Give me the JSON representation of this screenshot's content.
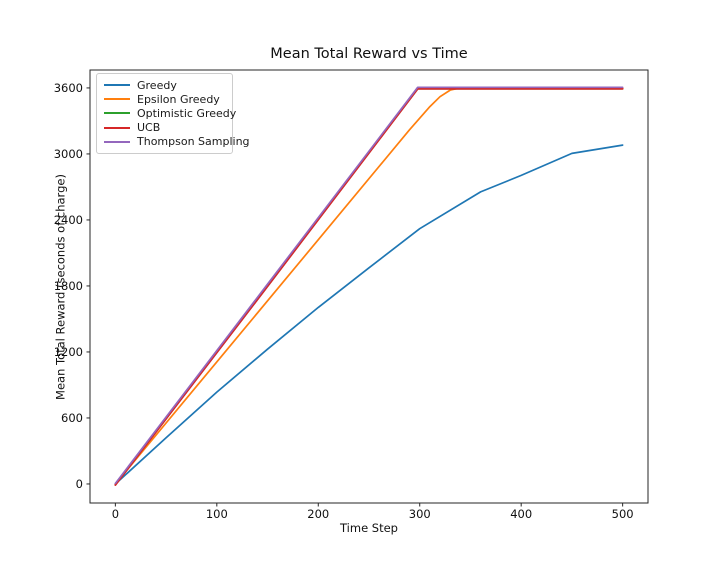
{
  "chart_data": {
    "type": "line",
    "title": "Mean Total Reward vs Time",
    "xlabel": "Time Step",
    "ylabel": "Mean Total Reward (seconds of charge)",
    "x_ticks": [
      0,
      100,
      200,
      300,
      400,
      500
    ],
    "y_ticks": [
      0,
      600,
      1200,
      1800,
      2400,
      3000,
      3600
    ],
    "xlim": [
      -25,
      525
    ],
    "ylim": [
      -173,
      3763
    ],
    "grid": false,
    "legend_position": "upper left",
    "series": [
      {
        "name": "Greedy",
        "color": "#1f77b4",
        "points": [
          [
            0,
            0
          ],
          [
            50,
            420
          ],
          [
            100,
            835
          ],
          [
            150,
            1225
          ],
          [
            200,
            1605
          ],
          [
            250,
            1965
          ],
          [
            300,
            2320
          ],
          [
            360,
            2655
          ],
          [
            400,
            2805
          ],
          [
            450,
            3005
          ],
          [
            500,
            3080
          ]
        ]
      },
      {
        "name": "Epsilon Greedy",
        "color": "#ff7f0e",
        "points": [
          [
            0,
            0
          ],
          [
            100,
            1110
          ],
          [
            200,
            2220
          ],
          [
            290,
            3220
          ],
          [
            310,
            3430
          ],
          [
            320,
            3520
          ],
          [
            330,
            3580
          ],
          [
            340,
            3600
          ],
          [
            500,
            3600
          ]
        ]
      },
      {
        "name": "Optimistic Greedy",
        "color": "#2ca02c",
        "points": [
          [
            0,
            0
          ],
          [
            150,
            1805
          ],
          [
            298,
            3600
          ],
          [
            500,
            3600
          ]
        ]
      },
      {
        "name": "UCB",
        "color": "#d62728",
        "points": [
          [
            0,
            0
          ],
          [
            150,
            1805
          ],
          [
            298,
            3600
          ],
          [
            500,
            3600
          ]
        ]
      },
      {
        "name": "Thompson Sampling",
        "color": "#9467bd",
        "points": [
          [
            0,
            0
          ],
          [
            150,
            1810
          ],
          [
            298,
            3600
          ],
          [
            500,
            3600
          ]
        ]
      }
    ]
  }
}
